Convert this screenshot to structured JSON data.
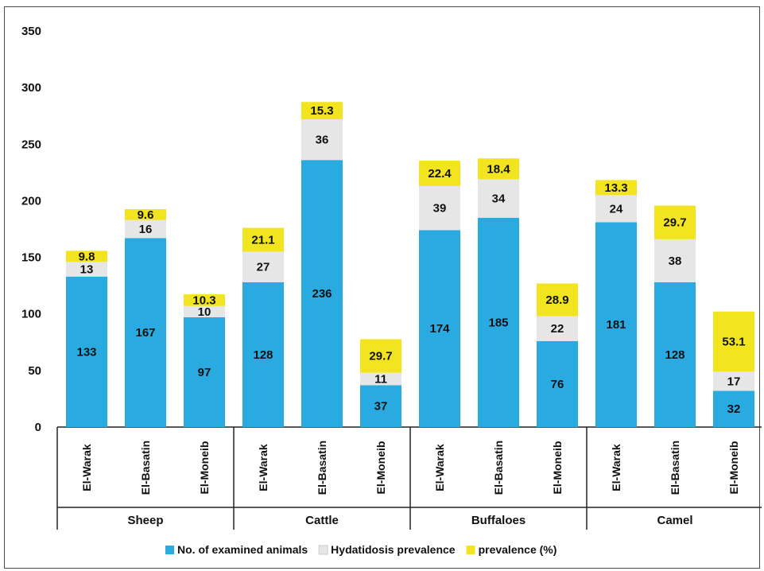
{
  "chart_data": {
    "type": "bar",
    "stacked": true,
    "title": "",
    "xlabel": "",
    "ylabel": "",
    "ylim": [
      0,
      350
    ],
    "yticks": [
      0,
      50,
      100,
      150,
      200,
      250,
      300,
      350
    ],
    "grid": false,
    "legend_position": "bottom",
    "groups": [
      {
        "name": "Sheep",
        "categories": [
          "El-Warak",
          "El-Basatin",
          "El-Moneib"
        ]
      },
      {
        "name": "Cattle",
        "categories": [
          "El-Warak",
          "El-Basatin",
          "El-Moneib"
        ]
      },
      {
        "name": "Buffaloes",
        "categories": [
          "El-Warak",
          "El-Basatin",
          "El-Moneib"
        ]
      },
      {
        "name": "Camel",
        "categories": [
          "El-Warak",
          "El-Basatin",
          "El-Moneib"
        ]
      }
    ],
    "series": [
      {
        "name": "No. of examined animals",
        "color": "#29abe2",
        "values": [
          133,
          167,
          97,
          128,
          236,
          37,
          174,
          185,
          76,
          181,
          128,
          32
        ],
        "labels": [
          "133",
          "167",
          "97",
          "128",
          "236",
          "37",
          "174",
          "185",
          "76",
          "181",
          "128",
          "32"
        ]
      },
      {
        "name": "Hydatidosis prevalence",
        "color": "#e6e6e6",
        "values": [
          13,
          16,
          10,
          27,
          36,
          11,
          39,
          34,
          22,
          24,
          38,
          17
        ],
        "labels": [
          "13",
          "16",
          "10",
          "27",
          "36",
          "11",
          "39",
          "34",
          "22",
          "24",
          "38",
          "17"
        ]
      },
      {
        "name": "prevalence (%)",
        "color": "#f2e51f",
        "values": [
          9.8,
          9.6,
          10.3,
          21.1,
          15.3,
          29.7,
          22.4,
          18.4,
          28.9,
          13.3,
          29.7,
          53.1
        ],
        "labels": [
          "9.8",
          "9.6",
          "10.3",
          "21.1",
          "15.3",
          "29.7",
          "22.4",
          "18.4",
          "28.9",
          "13.3",
          "29.7",
          "53.1"
        ]
      }
    ]
  }
}
